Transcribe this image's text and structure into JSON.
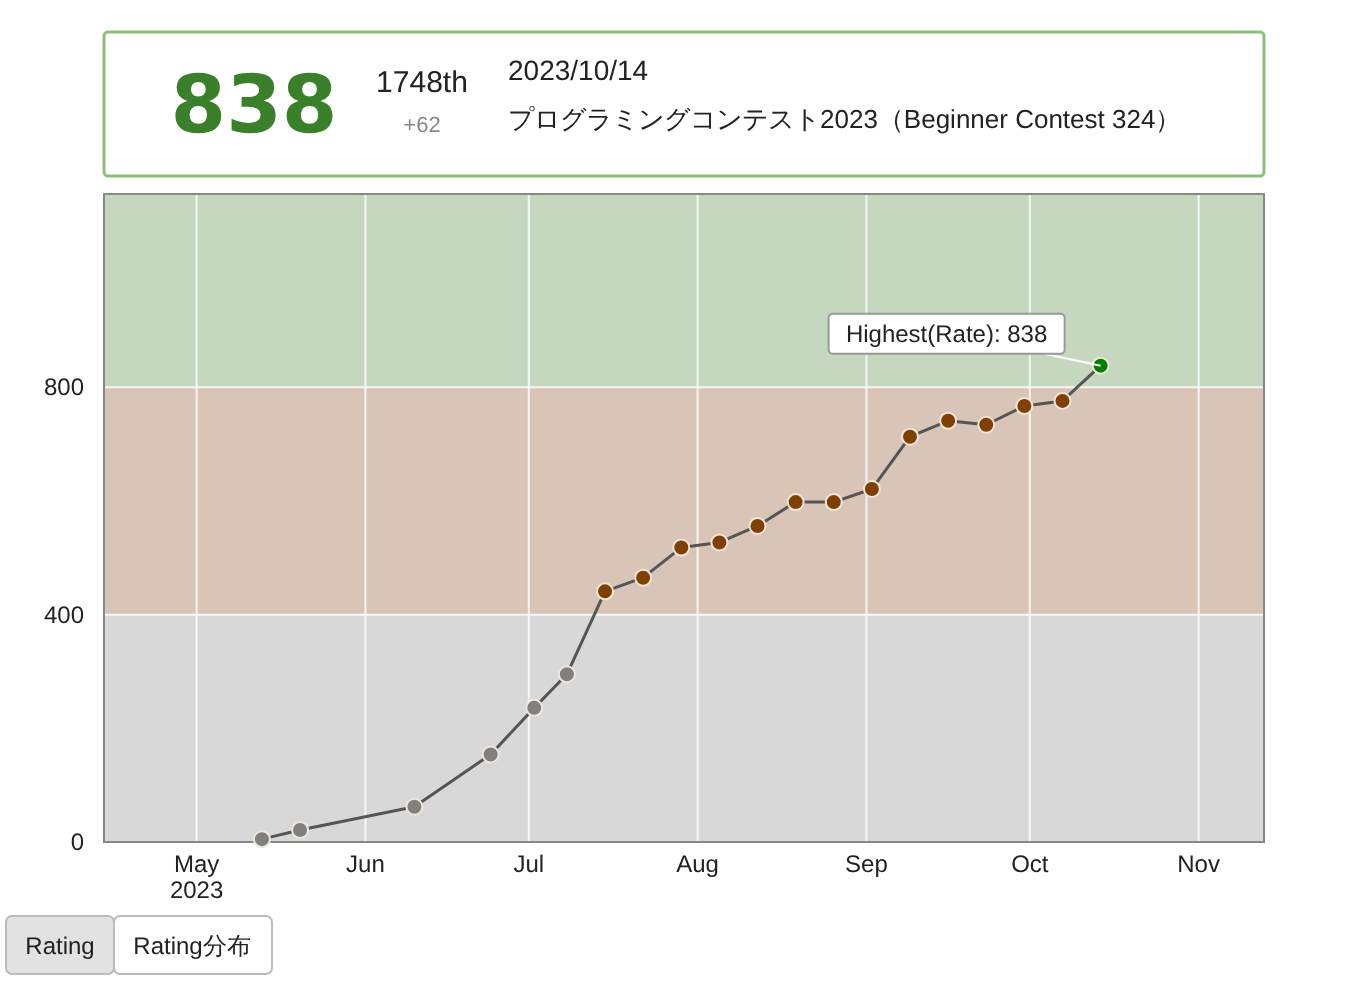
{
  "chart_data": {
    "type": "line",
    "x": [
      "2023-05-13",
      "2023-05-20",
      "2023-06-10",
      "2023-06-24",
      "2023-07-02",
      "2023-07-08",
      "2023-07-15",
      "2023-07-22",
      "2023-07-29",
      "2023-08-05",
      "2023-08-12",
      "2023-08-19",
      "2023-08-26",
      "2023-09-02",
      "2023-09-09",
      "2023-09-16",
      "2023-09-23",
      "2023-09-30",
      "2023-10-07",
      "2023-10-14"
    ],
    "series": [
      {
        "color": "#555555",
        "colors": [
          "#808080",
          "#808080",
          "#808080",
          "#808080",
          "#808080",
          "#808080",
          "#804000",
          "#804000",
          "#804000",
          "#804000",
          "#804000",
          "#804000",
          "#804000",
          "#804000",
          "#804000",
          "#804000",
          "#804000",
          "#804000",
          "#804000",
          "#008000"
        ],
        "values": [
          5,
          21,
          62,
          154,
          236,
          295,
          441,
          465,
          518,
          527,
          556,
          598,
          598,
          621,
          713,
          741,
          734,
          767,
          776,
          838
        ]
      }
    ],
    "xlim": [
      "2023-04-14",
      "2023-11-13"
    ],
    "xticks": [
      {
        "value": "2023-05-01",
        "label": "May\n2023"
      },
      {
        "value": "2023-06-01",
        "label": "Jun"
      },
      {
        "value": "2023-07-01",
        "label": "Jul"
      },
      {
        "value": "2023-08-01",
        "label": "Aug"
      },
      {
        "value": "2023-09-01",
        "label": "Sep"
      },
      {
        "value": "2023-10-01",
        "label": "Oct"
      },
      {
        "value": "2023-11-01",
        "label": "Nov"
      }
    ],
    "ylim": [
      0,
      1140
    ],
    "yticks": [
      0,
      400,
      800
    ],
    "bands": [
      {
        "axis": "y",
        "from": 0,
        "to": 400,
        "color": "#d8d8d8"
      },
      {
        "axis": "y",
        "from": 400,
        "to": 800,
        "color": "#d8c5b8"
      },
      {
        "axis": "y",
        "from": 800,
        "to": 1140,
        "color": "#c5d8bf"
      }
    ],
    "grid": true,
    "marker": "circle",
    "line_style": "solid",
    "annotations": [
      "838",
      "1748th",
      "+62",
      "2023/10/14",
      "プログラミングコンテスト2023（Beginner Contest 324）",
      {
        "text": "Highest(Rate): 838",
        "x": "2023-10-14",
        "y": 838
      },
      "Rating",
      "Rating分布"
    ]
  }
}
